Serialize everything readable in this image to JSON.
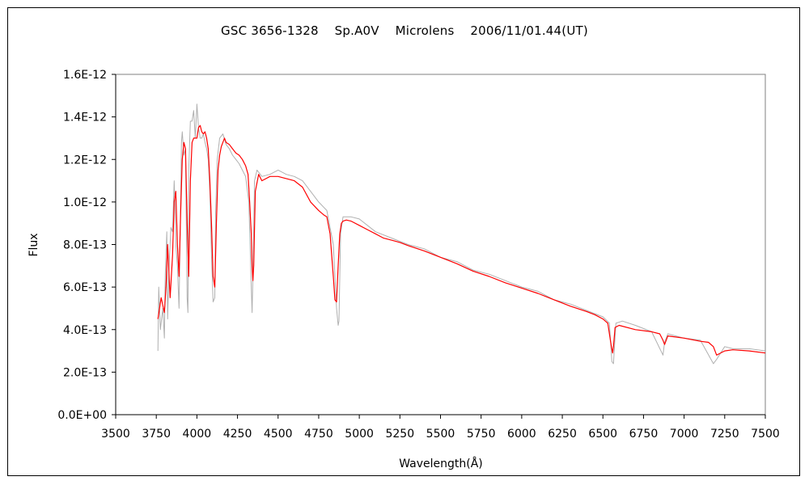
{
  "chart_data": {
    "type": "line",
    "title": "GSC 3656-1328    Sp.A0V    Microlens    2006/11/01.44(UT)",
    "xlabel": "Wavelength(Å)",
    "ylabel": "Flux",
    "xlim": [
      3500,
      7500
    ],
    "ylim": [
      0,
      1.6e-12
    ],
    "x_ticks": [
      "3500",
      "3750",
      "4000",
      "4250",
      "4500",
      "4750",
      "5000",
      "5250",
      "5500",
      "5750",
      "6000",
      "6250",
      "6500",
      "6750",
      "7000",
      "7250",
      "7500"
    ],
    "y_ticks": [
      "0.0E+00",
      "2.0E-13",
      "4.0E-13",
      "6.0E-13",
      "8.0E-13",
      "1.0E-12",
      "1.2E-12",
      "1.4E-12",
      "1.6E-12"
    ],
    "grid": false,
    "legend": "none",
    "series": [
      {
        "color": "#ff0000",
        "style": "smoothed",
        "x": [
          3760,
          3780,
          3800,
          3810,
          3820,
          3835,
          3850,
          3860,
          3870,
          3880,
          3890,
          3900,
          3910,
          3920,
          3930,
          3940,
          3950,
          3960,
          3970,
          3980,
          3990,
          4000,
          4010,
          4020,
          4030,
          4040,
          4050,
          4060,
          4070,
          4080,
          4090,
          4100,
          4110,
          4120,
          4130,
          4140,
          4150,
          4160,
          4170,
          4180,
          4200,
          4220,
          4240,
          4260,
          4280,
          4300,
          4315,
          4325,
          4335,
          4340,
          4345,
          4350,
          4360,
          4380,
          4400,
          4450,
          4500,
          4550,
          4600,
          4650,
          4700,
          4750,
          4780,
          4800,
          4820,
          4840,
          4850,
          4860,
          4870,
          4880,
          4890,
          4900,
          4920,
          4950,
          5000,
          5050,
          5100,
          5150,
          5200,
          5250,
          5300,
          5400,
          5500,
          5600,
          5700,
          5800,
          5900,
          6000,
          6100,
          6200,
          6300,
          6400,
          6450,
          6500,
          6530,
          6550,
          6560,
          6565,
          6575,
          6600,
          6700,
          6800,
          6850,
          6870,
          6880,
          6900,
          7000,
          7100,
          7150,
          7180,
          7200,
          7250,
          7300,
          7400,
          7500
        ],
        "y": [
          4.5e-13,
          5.5e-13,
          4.8e-13,
          6e-13,
          8e-13,
          5.5e-13,
          7.5e-13,
          1e-12,
          1.05e-12,
          8e-13,
          6.5e-13,
          9.5e-13,
          1.2e-12,
          1.28e-12,
          1.25e-12,
          9e-13,
          6.5e-13,
          1.1e-12,
          1.28e-12,
          1.3e-12,
          1.3e-12,
          1.3e-12,
          1.35e-12,
          1.36e-12,
          1.33e-12,
          1.32e-12,
          1.33e-12,
          1.3e-12,
          1.25e-12,
          1.1e-12,
          9e-13,
          6.5e-13,
          6e-13,
          9e-13,
          1.15e-12,
          1.22e-12,
          1.26e-12,
          1.28e-12,
          1.3e-12,
          1.28e-12,
          1.27e-12,
          1.25e-12,
          1.23e-12,
          1.22e-12,
          1.2e-12,
          1.17e-12,
          1.13e-12,
          1e-12,
          8.5e-13,
          7e-13,
          6.3e-13,
          7e-13,
          1.05e-12,
          1.13e-12,
          1.1e-12,
          1.12e-12,
          1.12e-12,
          1.11e-12,
          1.1e-12,
          1.07e-12,
          1e-12,
          9.6e-13,
          9.4e-13,
          9.3e-13,
          8.5e-13,
          6.5e-13,
          5.4e-13,
          5.3e-13,
          7e-13,
          8.5e-13,
          9e-13,
          9.1e-13,
          9.15e-13,
          9.1e-13,
          8.9e-13,
          8.7e-13,
          8.5e-13,
          8.3e-13,
          8.2e-13,
          8.1e-13,
          7.95e-13,
          7.7e-13,
          7.4e-13,
          7.1e-13,
          6.75e-13,
          6.5e-13,
          6.2e-13,
          5.95e-13,
          5.7e-13,
          5.4e-13,
          5.1e-13,
          4.85e-13,
          4.7e-13,
          4.5e-13,
          4.3e-13,
          3.3e-13,
          2.9e-13,
          3.2e-13,
          4.1e-13,
          4.2e-13,
          4e-13,
          3.9e-13,
          3.8e-13,
          3.5e-13,
          3.3e-13,
          3.7e-13,
          3.6e-13,
          3.45e-13,
          3.4e-13,
          3.2e-13,
          2.8e-13,
          3e-13,
          3.05e-13,
          3e-13,
          2.9e-13
        ]
      },
      {
        "color": "#b0b0b0",
        "style": "raw",
        "x": [
          3760,
          3765,
          3775,
          3790,
          3800,
          3805,
          3815,
          3820,
          3830,
          3840,
          3850,
          3860,
          3865,
          3870,
          3880,
          3890,
          3900,
          3905,
          3910,
          3920,
          3930,
          3940,
          3945,
          3950,
          3960,
          3970,
          3980,
          3990,
          4000,
          4010,
          4020,
          4030,
          4040,
          4050,
          4060,
          4070,
          4080,
          4090,
          4100,
          4110,
          4115,
          4125,
          4140,
          4160,
          4180,
          4200,
          4220,
          4240,
          4260,
          4280,
          4300,
          4320,
          4335,
          4340,
          4345,
          4355,
          4370,
          4400,
          4450,
          4500,
          4550,
          4600,
          4650,
          4700,
          4750,
          4800,
          4840,
          4860,
          4870,
          4875,
          4885,
          4900,
          4950,
          5000,
          5100,
          5200,
          5300,
          5400,
          5500,
          5600,
          5700,
          5800,
          5900,
          6000,
          6100,
          6200,
          6300,
          6400,
          6500,
          6540,
          6555,
          6565,
          6580,
          6620,
          6700,
          6800,
          6870,
          6880,
          6900,
          7000,
          7100,
          7180,
          7200,
          7250,
          7300,
          7400,
          7500
        ],
        "y": [
          3e-13,
          6e-13,
          4e-13,
          5e-13,
          3.6e-13,
          6.5e-13,
          8.6e-13,
          4.5e-13,
          7.2e-13,
          8.8e-13,
          8.6e-13,
          1.1e-12,
          9.9e-13,
          8e-13,
          7e-13,
          5e-13,
          1e-12,
          1.28e-12,
          1.33e-12,
          1.22e-12,
          1.25e-12,
          5.5e-13,
          4.8e-13,
          1.15e-12,
          1.38e-12,
          1.38e-12,
          1.43e-12,
          1.3e-12,
          1.46e-12,
          1.35e-12,
          1.3e-12,
          1.3e-12,
          1.32e-12,
          1.28e-12,
          1.25e-12,
          1.2e-12,
          1.05e-12,
          7.5e-13,
          5.3e-13,
          5.5e-13,
          9.5e-13,
          1.2e-12,
          1.3e-12,
          1.32e-12,
          1.27e-12,
          1.25e-12,
          1.22e-12,
          1.2e-12,
          1.18e-12,
          1.15e-12,
          1.12e-12,
          1e-12,
          6e-13,
          4.8e-13,
          6.5e-13,
          1.1e-12,
          1.15e-12,
          1.12e-12,
          1.13e-12,
          1.15e-12,
          1.13e-12,
          1.12e-12,
          1.1e-12,
          1.05e-12,
          1e-12,
          9.6e-13,
          8e-13,
          5e-13,
          4.2e-13,
          4.4e-13,
          8.5e-13,
          9.3e-13,
          9.3e-13,
          9.2e-13,
          8.6e-13,
          8.3e-13,
          8e-13,
          7.8e-13,
          7.4e-13,
          7.2e-13,
          6.8e-13,
          6.6e-13,
          6.3e-13,
          6e-13,
          5.8e-13,
          5.4e-13,
          5.2e-13,
          4.9e-13,
          4.6e-13,
          4.3e-13,
          2.5e-13,
          2.4e-13,
          4.3e-13,
          4.4e-13,
          4.2e-13,
          3.9e-13,
          2.8e-13,
          3.4e-13,
          3.8e-13,
          3.6e-13,
          3.5e-13,
          2.4e-13,
          2.6e-13,
          3.2e-13,
          3.1e-13,
          3.1e-13,
          3e-13
        ]
      }
    ]
  }
}
